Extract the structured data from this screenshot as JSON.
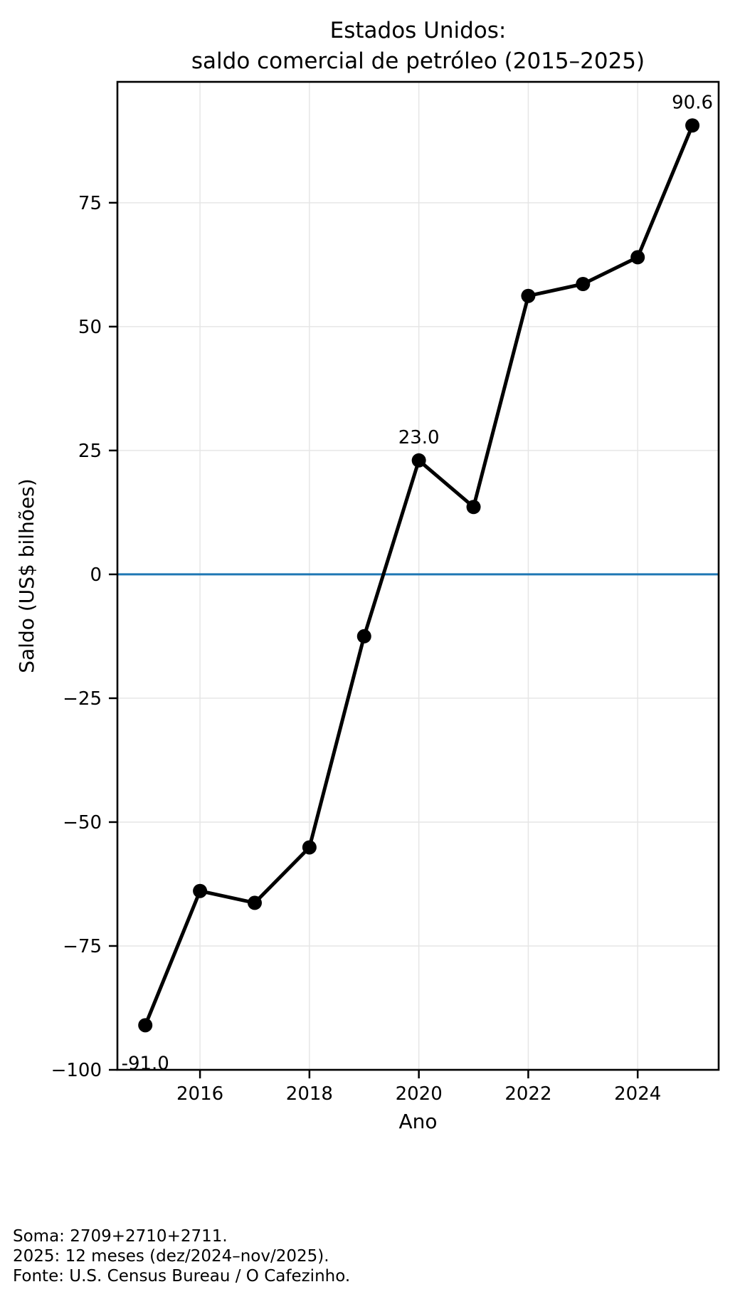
{
  "title": {
    "line1": "Estados Unidos:",
    "line2": "saldo comercial de petróleo (2015–2025)"
  },
  "chart_data": {
    "type": "line",
    "title": "Estados Unidos:\nsaldo comercial de petróleo (2015–2025)",
    "x": [
      2015,
      2016,
      2017,
      2018,
      2019,
      2020,
      2021,
      2022,
      2023,
      2024,
      2025
    ],
    "values": [
      -91.0,
      -63.9,
      -66.3,
      -55.1,
      -12.5,
      23.0,
      13.6,
      56.2,
      58.6,
      64.0,
      90.6
    ],
    "xlabel": "Ano",
    "ylabel": "Saldo (US$ bilhões)",
    "xticks": [
      2016,
      2018,
      2020,
      2022,
      2024
    ],
    "yticks": [
      75,
      50,
      25,
      0,
      -25,
      -50,
      -75,
      -100
    ],
    "xlim": [
      2014.49,
      2025.48
    ],
    "ylim": [
      -100,
      99.4
    ],
    "grid": true,
    "legend": false,
    "zero_line": {
      "y": 0,
      "color": "#1f77b4"
    },
    "annotations": [
      {
        "x": 2015,
        "y": -91.0,
        "text": "-91.0",
        "placement": "below"
      },
      {
        "x": 2020,
        "y": 23.0,
        "text": "23.0",
        "placement": "above"
      },
      {
        "x": 2025,
        "y": 90.6,
        "text": "90.6",
        "placement": "above"
      }
    ],
    "line_color": "#000000",
    "marker": "circle",
    "marker_color": "#000000",
    "grid_color": "#e6e6e6",
    "spine_color": "#000000"
  },
  "footer": {
    "line1": "Soma: 2709+2710+2711.",
    "line2": "2025: 12 meses (dez/2024–nov/2025).",
    "line3": "Fonte: U.S. Census Bureau / O Cafezinho."
  }
}
